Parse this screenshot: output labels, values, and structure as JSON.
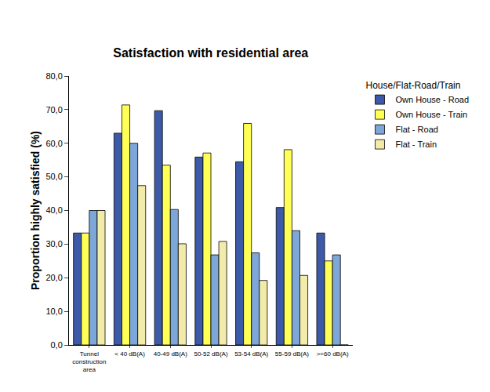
{
  "chart_data": {
    "type": "bar",
    "title": "Satisfaction with residential area",
    "y_label": "Proportion highly satisfied (%)",
    "legend_title": "House/Flat-Road/Train",
    "legend": "top right",
    "grid": false,
    "categories": [
      "Tunnel construction area",
      "< 40 dB(A)",
      "40-49 dB(A)",
      "50-52 dB(A)",
      "53-54 dB(A)",
      "55-59 dB(A)",
      ">=60 dB(A)"
    ],
    "series": [
      {
        "name": "Own House - Road",
        "color": "#3d5aa8",
        "values": [
          33.3,
          63.0,
          69.7,
          55.9,
          54.5,
          40.9,
          33.3
        ]
      },
      {
        "name": "Own House - Train",
        "color": "#ffff55",
        "values": [
          33.3,
          71.4,
          53.5,
          57.1,
          65.9,
          58.1,
          25.0
        ]
      },
      {
        "name": "Flat - Road",
        "color": "#7da7d8",
        "values": [
          40.0,
          60.0,
          40.3,
          26.8,
          27.4,
          34.0,
          26.8
        ]
      },
      {
        "name": "Flat - Train",
        "color": "#f2ebaa",
        "values": [
          40.0,
          47.4,
          30.1,
          30.8,
          19.2,
          20.7,
          0
        ]
      }
    ],
    "ylim": [
      0,
      80
    ],
    "yticks": [
      {
        "value": 0,
        "label": "0,0"
      },
      {
        "value": 10,
        "label": "10,0"
      },
      {
        "value": 20,
        "label": "20,0"
      },
      {
        "value": 30,
        "label": "30,0"
      },
      {
        "value": 40,
        "label": "40,0"
      },
      {
        "value": 50,
        "label": "50,0"
      },
      {
        "value": 60,
        "label": "60,0"
      },
      {
        "value": 70,
        "label": "70,0"
      },
      {
        "value": 80,
        "label": "80,0"
      }
    ]
  }
}
